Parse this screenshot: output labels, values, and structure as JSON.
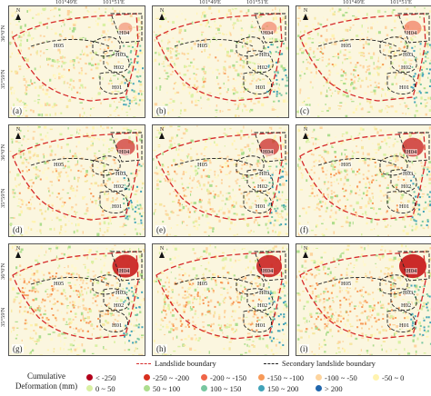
{
  "lon_labels": [
    "101°49'E",
    "101°51'E"
  ],
  "lat_labels": [
    "36°0'N",
    "35°59'N"
  ],
  "north_label": "N",
  "panels": [
    {
      "label": "(a)",
      "intensity": 0.15
    },
    {
      "label": "(b)",
      "intensity": 0.25
    },
    {
      "label": "(c)",
      "intensity": 0.35
    },
    {
      "label": "(d)",
      "intensity": 0.45
    },
    {
      "label": "(e)",
      "intensity": 0.5
    },
    {
      "label": "(f)",
      "intensity": 0.6
    },
    {
      "label": "(g)",
      "intensity": 0.85
    },
    {
      "label": "(h)",
      "intensity": 0.8
    },
    {
      "label": "(i)",
      "intensity": 0.9
    }
  ],
  "zones": [
    "H05",
    "H04",
    "H03",
    "H02",
    "H01"
  ],
  "legend": {
    "title": "Cumulative Deformation (mm)",
    "landslide_boundary": "Landslide boundary",
    "secondary_boundary": "Secondary landslide boundary",
    "landslide_color": "#d62a2a",
    "secondary_color": "#222222",
    "bins": [
      {
        "label": "< -250",
        "color": "#b3001b"
      },
      {
        "label": "-250 ~ -200",
        "color": "#d7301f"
      },
      {
        "label": "-200 ~ -150",
        "color": "#ef6548"
      },
      {
        "label": "-150 ~ -100",
        "color": "#f79a59"
      },
      {
        "label": "-100 ~ -50",
        "color": "#fdd49e"
      },
      {
        "label": "-50 ~ 0",
        "color": "#fff3b0"
      },
      {
        "label": "0 ~ 50",
        "color": "#d9f0a3"
      },
      {
        "label": "50 ~ 100",
        "color": "#addd8e"
      },
      {
        "label": "100 ~ 150",
        "color": "#78c6a0"
      },
      {
        "label": "150 ~ 200",
        "color": "#41a3b8"
      },
      {
        "label": "> 200",
        "color": "#2166ac"
      }
    ]
  }
}
